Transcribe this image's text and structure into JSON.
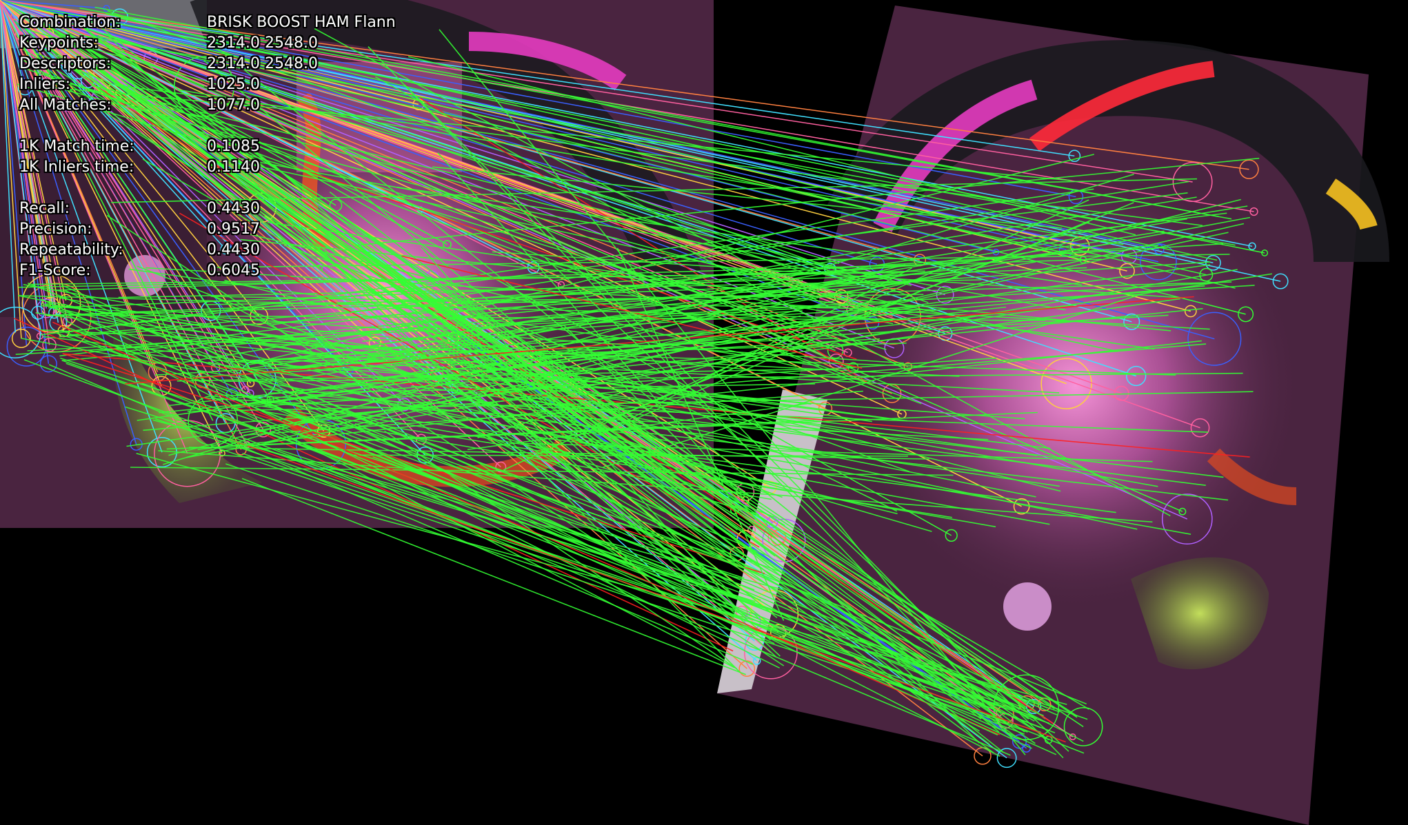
{
  "hud": {
    "combination": {
      "label": "Combination:",
      "value": "BRISK BOOST HAM Flann"
    },
    "keypoints": {
      "label": "Keypoints:",
      "value": "2314.0 2548.0"
    },
    "descriptors": {
      "label": "Descriptors:",
      "value": "2314.0 2548.0"
    },
    "inliers": {
      "label": "Inliers:",
      "value": "1025.0"
    },
    "all_matches": {
      "label": "All Matches:",
      "value": "1077.0"
    },
    "match_time": {
      "label": "1K Match time:",
      "value": "0.1085"
    },
    "inliers_time": {
      "label": "1K Inliers time:",
      "value": "0.1140"
    },
    "recall": {
      "label": "Recall:",
      "value": "0.4430"
    },
    "precision": {
      "label": "Precision:",
      "value": "0.9517"
    },
    "repeatability": {
      "label": "Repeatability:",
      "value": "0.4430"
    },
    "f1": {
      "label": "F1-Score:",
      "value": "0.6045"
    }
  },
  "colors": {
    "inlier_line": "#33ff33",
    "outlier_line": "#ff2020",
    "wall": "#4a2440",
    "background": "#000000"
  }
}
